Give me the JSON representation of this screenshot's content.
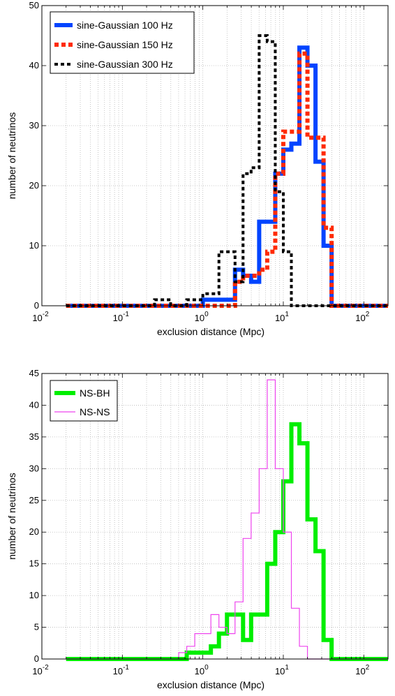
{
  "chart_data": [
    {
      "type": "line",
      "xscale": "log",
      "xlim": [
        0.01,
        200
      ],
      "ylim": [
        0,
        50
      ],
      "xlabel": "exclusion distance (Mpc)",
      "ylabel": "number of neutrinos",
      "x_tick_labels": [
        {
          "base": "10",
          "exp": "-2"
        },
        {
          "base": "10",
          "exp": "-1"
        },
        {
          "base": "10",
          "exp": "0"
        },
        {
          "base": "10",
          "exp": "1"
        },
        {
          "base": "10",
          "exp": "2"
        }
      ],
      "y_ticks": [
        0,
        10,
        20,
        30,
        40,
        50
      ],
      "grid": true,
      "legend_position": "top-left",
      "series": [
        {
          "name": "sine-Gaussian 100 Hz",
          "color": "#0044ff",
          "style": "solid",
          "edges": [
            0.02,
            0.631,
            1.0,
            1.585,
            2.512,
            3.162,
            3.981,
            5.012,
            6.31,
            7.943,
            10.0,
            12.59,
            15.85,
            19.95,
            25.12,
            31.62,
            39.81,
            200
          ],
          "counts": [
            0,
            0,
            1,
            1,
            6,
            5,
            4,
            14,
            14,
            22,
            26,
            27,
            43,
            40,
            24,
            10,
            0
          ]
        },
        {
          "name": "sine-Gaussian 150 Hz",
          "color": "#ff2a00",
          "style": "dashed",
          "edges": [
            0.02,
            0.631,
            1.0,
            1.585,
            2.512,
            3.162,
            3.981,
            5.012,
            6.31,
            7.943,
            10.0,
            12.59,
            15.85,
            19.95,
            25.12,
            31.62,
            39.81,
            200
          ],
          "counts": [
            0,
            0,
            0,
            0,
            4,
            5,
            5,
            6,
            9,
            22,
            29,
            29,
            42,
            28,
            28,
            13,
            0
          ]
        },
        {
          "name": "sine-Gaussian 300 Hz",
          "color": "#000000",
          "style": "dotted",
          "edges": [
            0.02,
            0.251,
            0.398,
            0.631,
            1.0,
            1.585,
            2.512,
            3.162,
            3.981,
            5.012,
            6.31,
            7.943,
            10.0,
            12.59,
            200
          ],
          "counts": [
            0,
            1,
            0,
            1,
            2,
            9,
            4,
            22,
            23,
            45,
            44,
            19,
            9,
            0
          ]
        }
      ]
    },
    {
      "type": "line",
      "xscale": "log",
      "xlim": [
        0.01,
        200
      ],
      "ylim": [
        0,
        45
      ],
      "xlabel": "exclusion distance (Mpc)",
      "ylabel": "number of neutrinos",
      "x_tick_labels": [
        {
          "base": "10",
          "exp": "-2"
        },
        {
          "base": "10",
          "exp": "-1"
        },
        {
          "base": "10",
          "exp": "0"
        },
        {
          "base": "10",
          "exp": "1"
        },
        {
          "base": "10",
          "exp": "2"
        }
      ],
      "y_ticks": [
        0,
        5,
        10,
        15,
        20,
        25,
        30,
        35,
        40,
        45
      ],
      "grid": true,
      "legend_position": "top-left",
      "series": [
        {
          "name": "NS-BH",
          "color": "#00ee00",
          "style": "thick",
          "edges": [
            0.02,
            0.631,
            0.794,
            1.259,
            1.585,
            1.995,
            2.512,
            3.162,
            3.981,
            5.012,
            6.31,
            7.943,
            10.0,
            12.59,
            15.85,
            19.95,
            25.12,
            31.62,
            39.81,
            200
          ],
          "counts": [
            0,
            1,
            1,
            2,
            4,
            7,
            7,
            3,
            7,
            7,
            15,
            20,
            28,
            37,
            34,
            22,
            17,
            3,
            0
          ]
        },
        {
          "name": "NS-NS",
          "color": "#ee44ee",
          "style": "thin",
          "edges": [
            0.02,
            0.501,
            0.631,
            0.794,
            1.0,
            1.259,
            1.585,
            1.995,
            2.512,
            3.162,
            3.981,
            5.012,
            6.31,
            7.943,
            10.0,
            12.59,
            15.85,
            19.95,
            200
          ],
          "counts": [
            0,
            1,
            2,
            4,
            4,
            7,
            5,
            4,
            9,
            19,
            23,
            30,
            44,
            30,
            20,
            8,
            2,
            0
          ]
        }
      ]
    }
  ]
}
